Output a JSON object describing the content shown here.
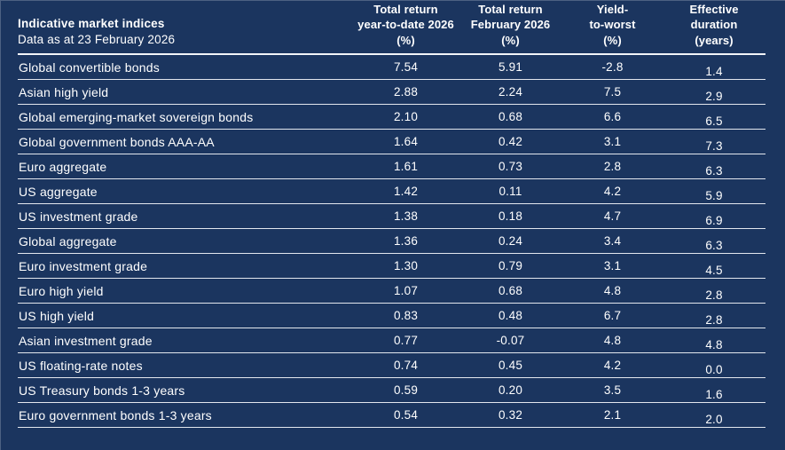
{
  "colors": {
    "background": "#1b355f",
    "divider": "#e3e7ee",
    "divider_strong": "#f2f4f8",
    "text": "#ffffff"
  },
  "table": {
    "title": "Indicative market indices",
    "subtitle": "Data as at 23 February 2026",
    "columns": [
      {
        "name": "total-return-ytd",
        "lines": [
          "Total return",
          "year-to-date 2026",
          "(%)"
        ]
      },
      {
        "name": "total-return-february",
        "lines": [
          "Total return",
          "February 2026",
          "(%)"
        ]
      },
      {
        "name": "yield-to-worst",
        "lines": [
          "Yield-",
          "to-worst",
          "(%)"
        ]
      },
      {
        "name": "effective-duration",
        "lines": [
          "Effective",
          "duration",
          "(years)"
        ]
      }
    ],
    "rows": [
      {
        "label": "Global convertible bonds",
        "values": [
          "7.54",
          "5.91",
          "-2.8",
          "1.4"
        ]
      },
      {
        "label": "Asian high yield",
        "values": [
          "2.88",
          "2.24",
          "7.5",
          "2.9"
        ]
      },
      {
        "label": "Global emerging-market sovereign bonds",
        "values": [
          "2.10",
          "0.68",
          "6.6",
          "6.5"
        ]
      },
      {
        "label": "Global government bonds AAA-AA",
        "values": [
          "1.64",
          "0.42",
          "3.1",
          "7.3"
        ]
      },
      {
        "label": "Euro aggregate",
        "values": [
          "1.61",
          "0.73",
          "2.8",
          "6.3"
        ]
      },
      {
        "label": "US aggregate",
        "values": [
          "1.42",
          "0.11",
          "4.2",
          "5.9"
        ]
      },
      {
        "label": "US investment grade",
        "values": [
          "1.38",
          "0.18",
          "4.7",
          "6.9"
        ]
      },
      {
        "label": "Global aggregate",
        "values": [
          "1.36",
          "0.24",
          "3.4",
          "6.3"
        ]
      },
      {
        "label": "Euro investment grade",
        "values": [
          "1.30",
          "0.79",
          "3.1",
          "4.5"
        ]
      },
      {
        "label": "Euro high yield",
        "values": [
          "1.07",
          "0.68",
          "4.8",
          "2.8"
        ]
      },
      {
        "label": "US high yield",
        "values": [
          "0.83",
          "0.48",
          "6.7",
          "2.8"
        ]
      },
      {
        "label": "Asian investment grade",
        "values": [
          "0.77",
          "-0.07",
          "4.8",
          "4.8"
        ]
      },
      {
        "label": "US floating-rate notes",
        "values": [
          "0.74",
          "0.45",
          "4.2",
          "0.0"
        ]
      },
      {
        "label": "US Treasury bonds 1-3 years",
        "values": [
          "0.59",
          "0.20",
          "3.5",
          "1.6"
        ]
      },
      {
        "label": "Euro government bonds 1-3 years",
        "values": [
          "0.54",
          "0.32",
          "2.1",
          "2.0"
        ]
      }
    ]
  }
}
